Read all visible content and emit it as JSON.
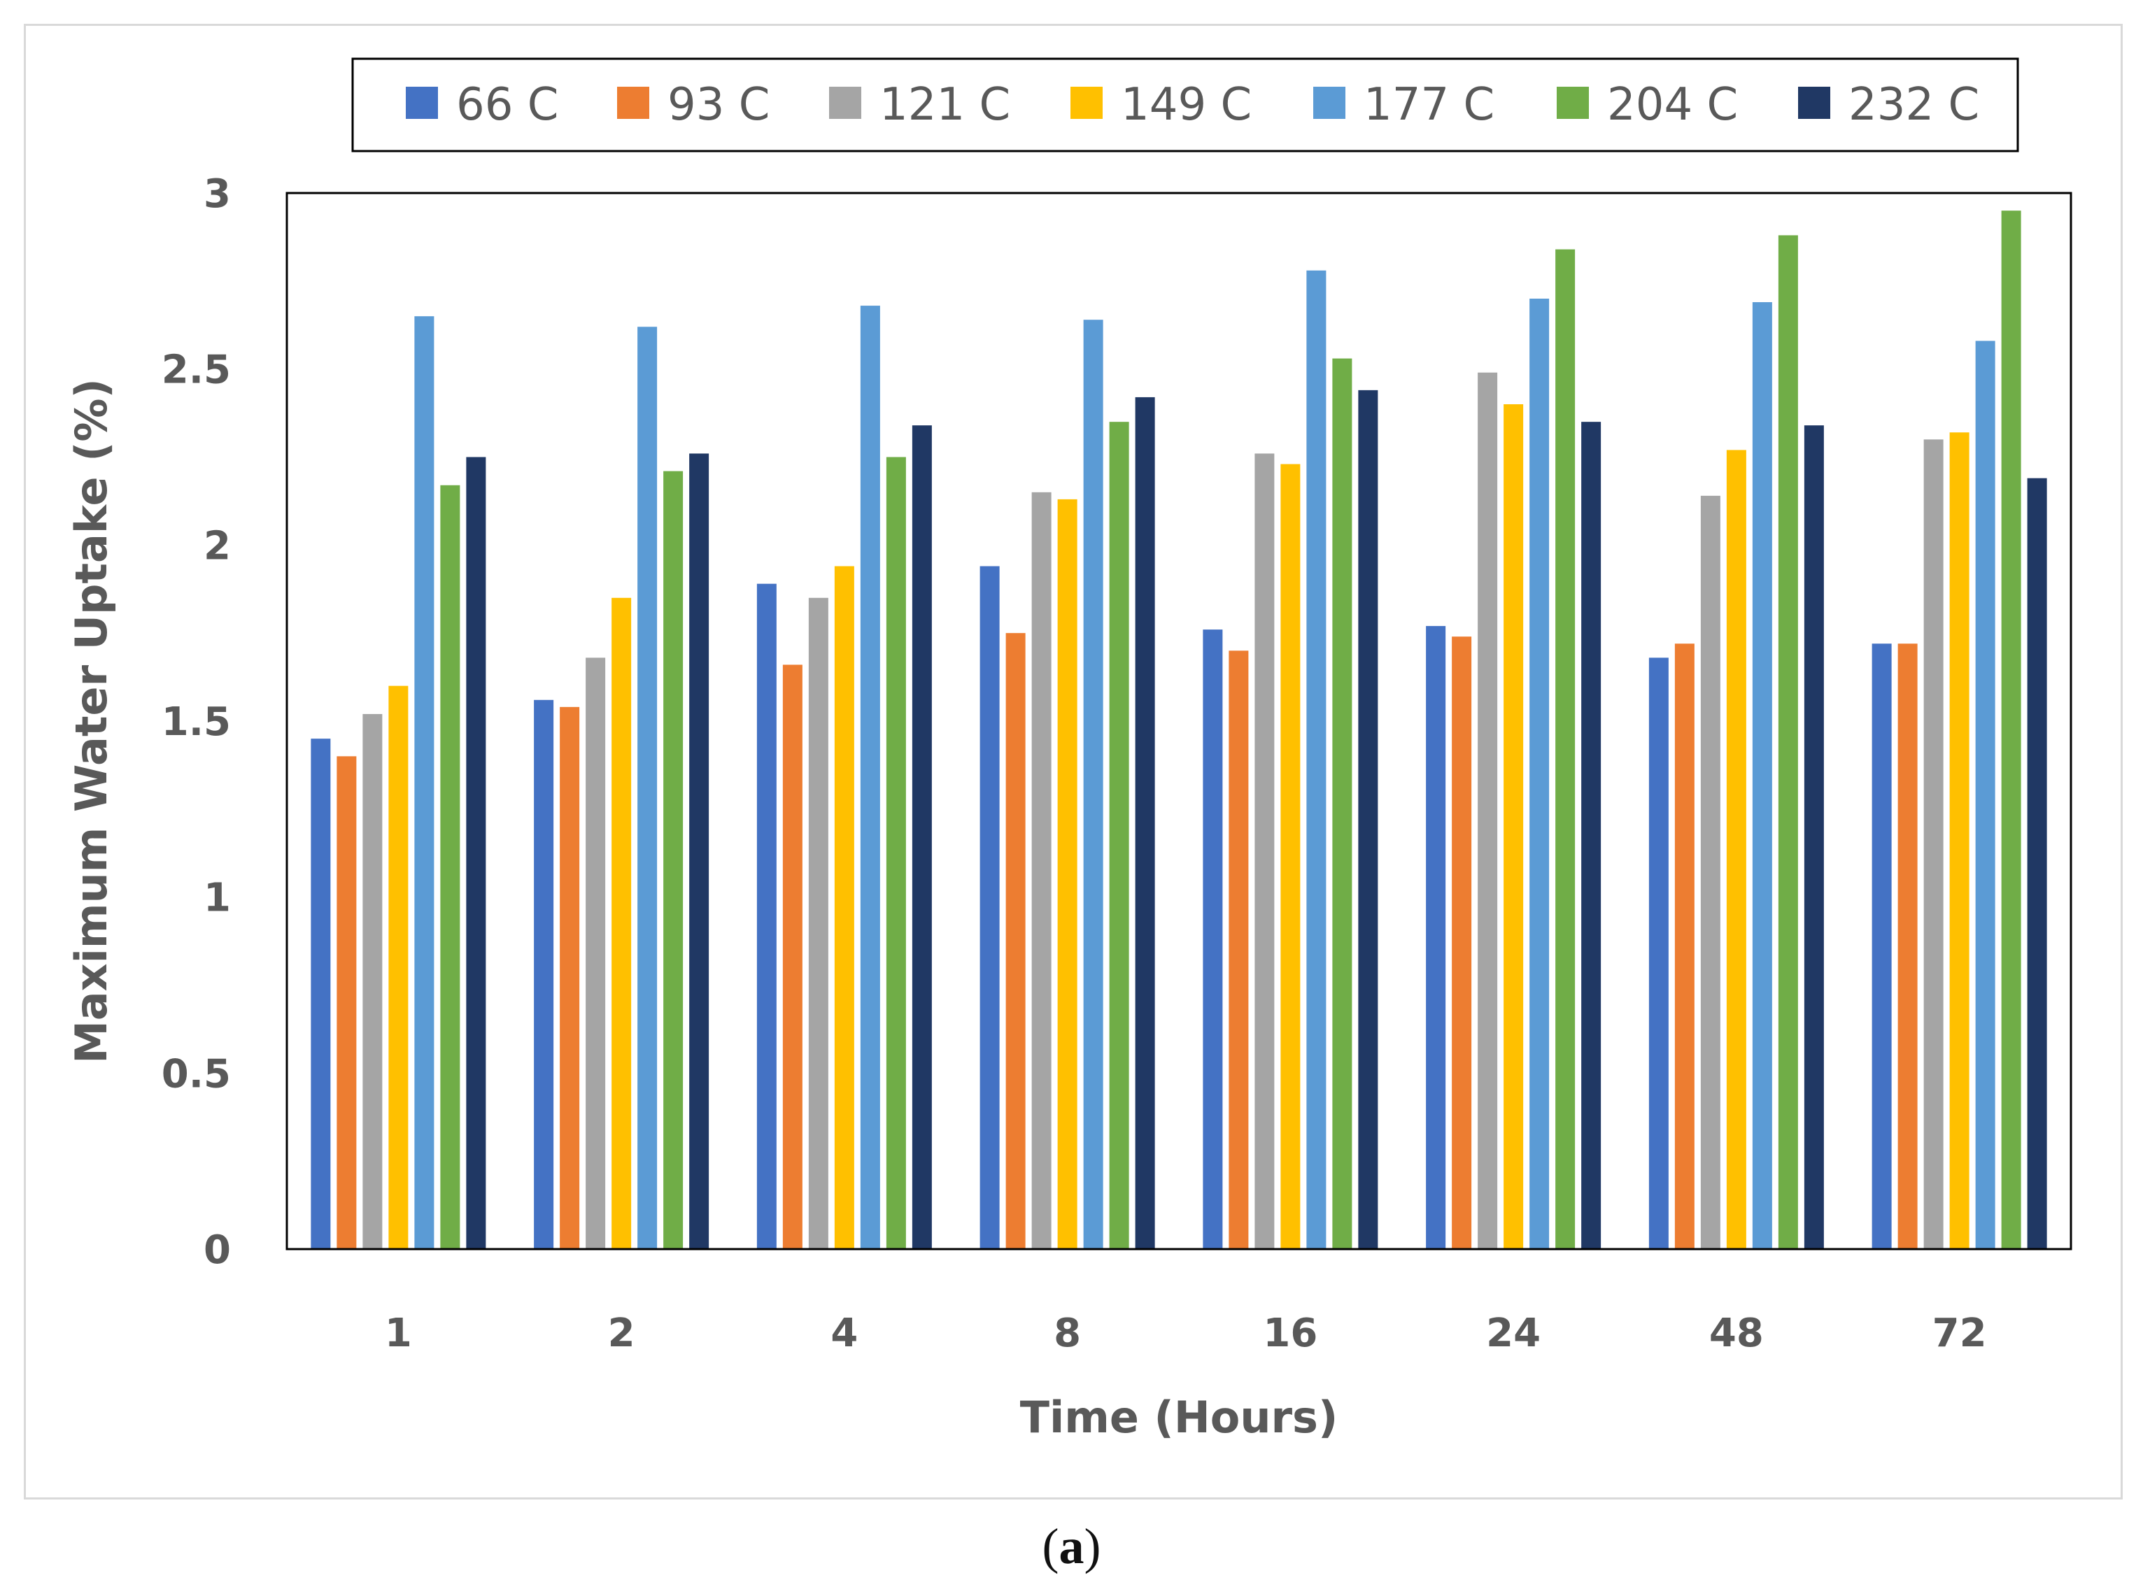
{
  "chart_data": {
    "type": "bar",
    "title": "",
    "xlabel": "Time (Hours)",
    "ylabel": "Maximum Water Uptake (%)",
    "ylim": [
      0,
      3
    ],
    "yticks": [
      "0",
      "0.5",
      "1",
      "1.5",
      "2",
      "2.5",
      "3"
    ],
    "grid": false,
    "legend_position": "top",
    "categories": [
      "1",
      "2",
      "4",
      "8",
      "16",
      "24",
      "48",
      "72"
    ],
    "series": [
      {
        "name": "66 C",
        "color": "#4472C4",
        "values": [
          1.45,
          1.56,
          1.89,
          1.94,
          1.76,
          1.77,
          1.68,
          1.72
        ]
      },
      {
        "name": "93 C",
        "color": "#ED7D31",
        "values": [
          1.4,
          1.54,
          1.66,
          1.75,
          1.7,
          1.74,
          1.72,
          1.72
        ]
      },
      {
        "name": "121 C",
        "color": "#A5A5A5",
        "values": [
          1.52,
          1.68,
          1.85,
          2.15,
          2.26,
          2.49,
          2.14,
          2.3
        ]
      },
      {
        "name": "149 C",
        "color": "#FFC000",
        "values": [
          1.6,
          1.85,
          1.94,
          2.13,
          2.23,
          2.4,
          2.27,
          2.32
        ]
      },
      {
        "name": "177 C",
        "color": "#5B9BD5",
        "values": [
          2.65,
          2.62,
          2.68,
          2.64,
          2.78,
          2.7,
          2.69,
          2.58
        ]
      },
      {
        "name": "204 C",
        "color": "#70AD47",
        "values": [
          2.17,
          2.21,
          2.25,
          2.35,
          2.53,
          2.84,
          2.88,
          2.95
        ]
      },
      {
        "name": "232 C",
        "color": "#203864",
        "values": [
          2.25,
          2.26,
          2.34,
          2.42,
          2.44,
          2.35,
          2.34,
          2.19
        ]
      }
    ]
  },
  "caption": {
    "open": "(",
    "letter": "a",
    "close": ")"
  }
}
